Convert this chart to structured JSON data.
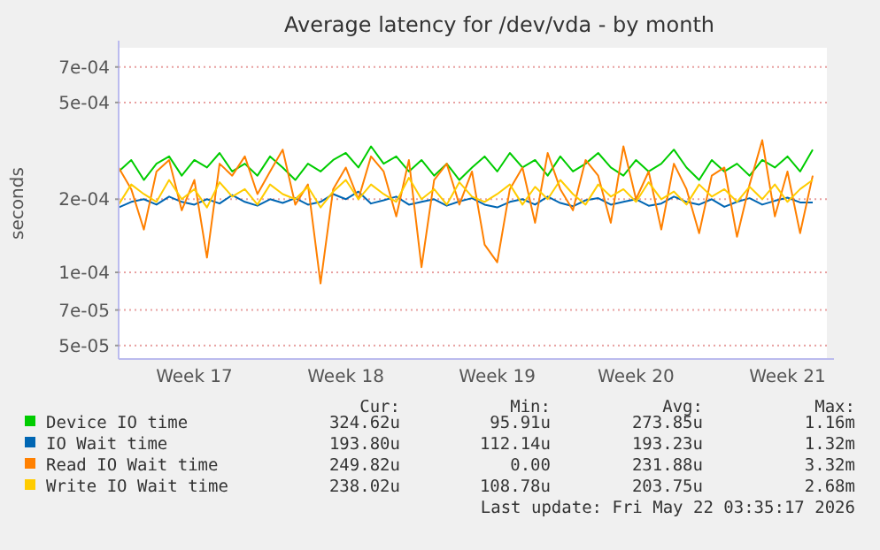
{
  "chart_data": {
    "type": "line",
    "title": "Average latency for /dev/vda - by month",
    "ylabel": "seconds",
    "log": true,
    "grid": "y",
    "legend": "bottom",
    "marker": "none",
    "line_style": "solid",
    "categories": [
      null,
      null,
      null,
      null,
      null,
      null,
      "Week 17",
      null,
      null,
      null,
      null,
      null,
      null,
      null,
      null,
      null,
      null,
      null,
      "Week 18",
      null,
      null,
      null,
      null,
      null,
      null,
      null,
      null,
      null,
      null,
      null,
      "Week 19",
      null,
      null,
      null,
      null,
      null,
      null,
      null,
      null,
      null,
      null,
      "Week 20",
      null,
      null,
      null,
      null,
      null,
      null,
      null,
      null,
      null,
      null,
      null,
      "Week 21",
      null,
      null
    ],
    "ylim": [
      4.4e-05,
      0.00084
    ],
    "yticks": [
      {
        "value": 5e-05,
        "label": "5e-05"
      },
      {
        "value": 7e-05,
        "label": "7e-05"
      },
      {
        "value": 0.0001,
        "label": "1e-04"
      },
      {
        "value": 0.0002,
        "label": "2e-04"
      },
      {
        "value": 0.0005,
        "label": "5e-04"
      },
      {
        "value": 0.0007,
        "label": "7e-04"
      }
    ],
    "series": [
      {
        "name": "Device IO time",
        "color": "#00cc00",
        "values": [
          0.00026,
          0.00029,
          0.00024,
          0.00028,
          0.0003,
          0.00025,
          0.00029,
          0.00027,
          0.00031,
          0.00026,
          0.00028,
          0.00025,
          0.0003,
          0.00027,
          0.00024,
          0.00028,
          0.00026,
          0.00029,
          0.00031,
          0.00027,
          0.00033,
          0.00028,
          0.0003,
          0.00026,
          0.00029,
          0.00025,
          0.00028,
          0.00024,
          0.00027,
          0.0003,
          0.00026,
          0.00031,
          0.00027,
          0.00029,
          0.00025,
          0.0003,
          0.00026,
          0.00028,
          0.00031,
          0.00027,
          0.00025,
          0.00029,
          0.00026,
          0.00028,
          0.00032,
          0.00027,
          0.00024,
          0.00029,
          0.00026,
          0.00028,
          0.00025,
          0.00029,
          0.00027,
          0.0003,
          0.00026,
          0.00032
        ]
      },
      {
        "name": "IO Wait time",
        "color": "#0066b3",
        "values": [
          0.000185,
          0.000195,
          0.0002,
          0.00019,
          0.000205,
          0.000195,
          0.00019,
          0.0002,
          0.000192,
          0.000208,
          0.000195,
          0.000188,
          0.0002,
          0.000193,
          0.000202,
          0.00019,
          0.000195,
          0.00021,
          0.0002,
          0.000215,
          0.000192,
          0.000198,
          0.000205,
          0.00019,
          0.000195,
          0.0002,
          0.000188,
          0.000196,
          0.000202,
          0.00019,
          0.000185,
          0.000195,
          0.0002,
          0.00019,
          0.000205,
          0.000193,
          0.000187,
          0.000198,
          0.000202,
          0.00019,
          0.000195,
          0.0002,
          0.000188,
          0.000192,
          0.000205,
          0.000195,
          0.00019,
          0.0002,
          0.000186,
          0.000195,
          0.000202,
          0.00019,
          0.000197,
          0.000203,
          0.000194,
          0.000194
        ]
      },
      {
        "name": "Read IO Wait time",
        "color": "#ff8000",
        "values": [
          0.00027,
          0.00022,
          0.00015,
          0.00026,
          0.00029,
          0.00018,
          0.00024,
          0.000115,
          0.00028,
          0.00025,
          0.0003,
          0.00021,
          0.00026,
          0.00032,
          0.00019,
          0.00023,
          9e-05,
          0.00022,
          0.00027,
          0.0002,
          0.0003,
          0.00026,
          0.00017,
          0.00029,
          0.000105,
          0.00024,
          0.00028,
          0.00019,
          0.00026,
          0.00013,
          0.00011,
          0.00022,
          0.00027,
          0.00016,
          0.00031,
          0.00022,
          0.00018,
          0.00029,
          0.00025,
          0.00016,
          0.00033,
          0.0002,
          0.00026,
          0.00015,
          0.00028,
          0.00022,
          0.000145,
          0.00025,
          0.00027,
          0.00014,
          0.00023,
          0.00035,
          0.00017,
          0.00026,
          0.000145,
          0.00025
        ]
      },
      {
        "name": "Write IO Wait time",
        "color": "#ffcc00",
        "values": [
          0.00019,
          0.00023,
          0.00021,
          0.000195,
          0.00024,
          0.0002,
          0.00022,
          0.000185,
          0.000235,
          0.000205,
          0.00022,
          0.00019,
          0.00023,
          0.00021,
          0.0002,
          0.000225,
          0.000185,
          0.000215,
          0.00024,
          0.0002,
          0.00023,
          0.00021,
          0.000195,
          0.000245,
          0.0002,
          0.00022,
          0.00019,
          0.000235,
          0.000205,
          0.000195,
          0.00021,
          0.00023,
          0.00019,
          0.000225,
          0.0002,
          0.00024,
          0.00021,
          0.00019,
          0.00023,
          0.000205,
          0.00022,
          0.000195,
          0.000235,
          0.0002,
          0.000215,
          0.00019,
          0.00023,
          0.000205,
          0.00022,
          0.000195,
          0.000225,
          0.0002,
          0.00023,
          0.000195,
          0.00022,
          0.00024
        ]
      }
    ],
    "annotations": [
      "Cur:",
      "Min:",
      "Avg:",
      "Max:",
      "324.62u",
      "95.91u",
      "273.85u",
      "1.16m",
      "193.80u",
      "112.14u",
      "193.23u",
      "1.32m",
      "249.82u",
      "0.00",
      "231.88u",
      "3.32m",
      "238.02u",
      "108.78u",
      "203.75u",
      "2.68m",
      "Last update: Fri May 22 03:35:17 2026"
    ]
  }
}
